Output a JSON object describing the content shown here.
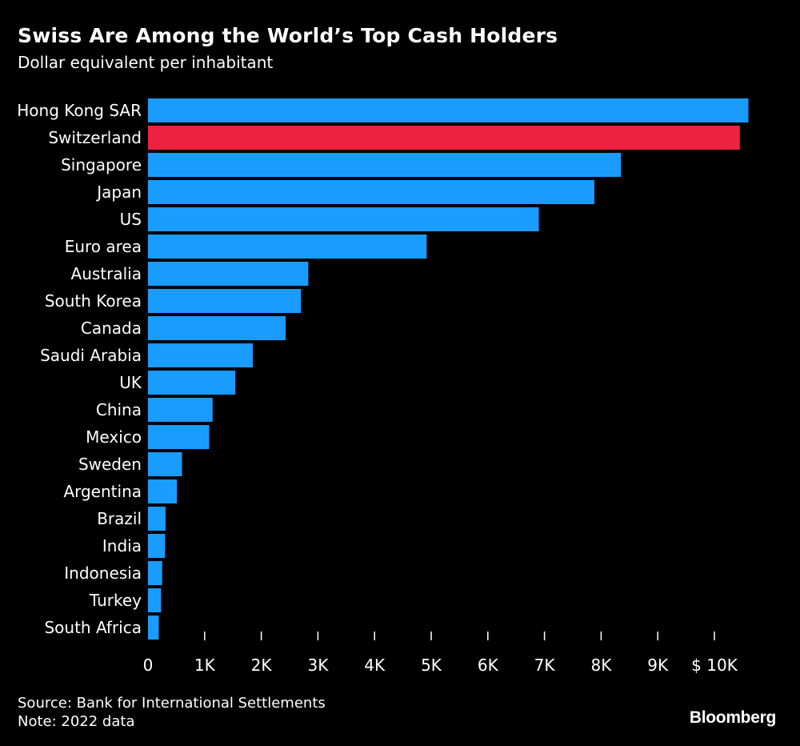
{
  "header": {
    "title": "Swiss Are Among the World’s Top Cash Holders",
    "subtitle": "Dollar equivalent per inhabitant"
  },
  "footer": {
    "source": "Source: Bank for International Settlements",
    "note": "Note: 2022 data",
    "logo": "Bloomberg"
  },
  "colors": {
    "background": "#000000",
    "bar_default": "#1a9cff",
    "bar_highlight": "#ee2140",
    "text": "#ffffff"
  },
  "chart_data": {
    "type": "bar",
    "orientation": "horizontal",
    "categories": [
      "Hong Kong SAR",
      "Switzerland",
      "Singapore",
      "Japan",
      "US",
      "Euro area",
      "Australia",
      "South Korea",
      "Canada",
      "Saudi Arabia",
      "UK",
      "China",
      "Mexico",
      "Sweden",
      "Argentina",
      "Brazil",
      "India",
      "Indonesia",
      "Turkey",
      "South Africa"
    ],
    "values": [
      10600,
      10450,
      8350,
      7880,
      6900,
      4920,
      2830,
      2700,
      2430,
      1850,
      1540,
      1140,
      1080,
      600,
      510,
      310,
      300,
      250,
      230,
      190
    ],
    "highlight": "Switzerland",
    "xlim": [
      0,
      10600
    ],
    "xticks": [
      0,
      1000,
      2000,
      3000,
      4000,
      5000,
      6000,
      7000,
      8000,
      9000,
      10000
    ],
    "xtick_labels": [
      "0",
      "1K",
      "2K",
      "3K",
      "4K",
      "5K",
      "6K",
      "7K",
      "8K",
      "9K",
      "$ 10K"
    ],
    "grid": false,
    "legend": "none"
  }
}
